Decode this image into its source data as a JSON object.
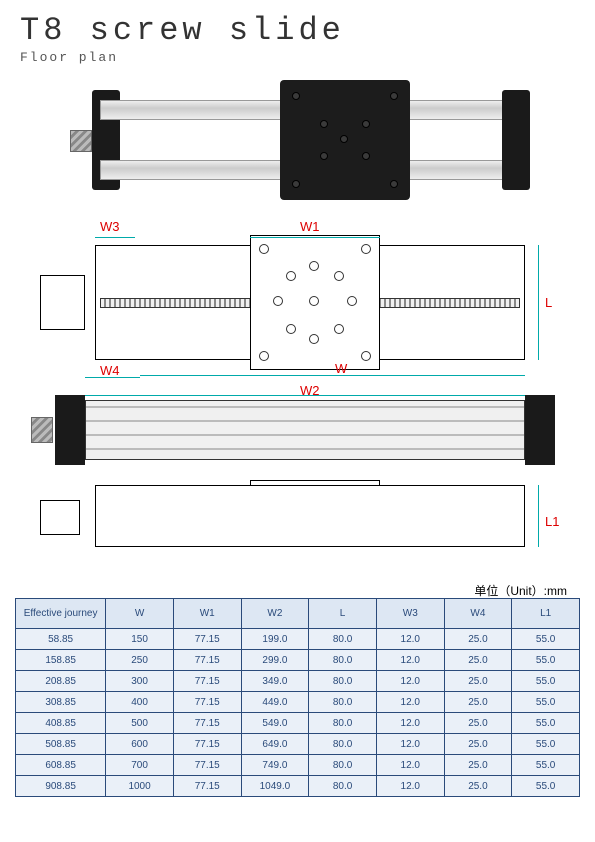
{
  "title": "T8 screw slide",
  "subtitle": "Floor plan",
  "unit_label": "单位（Unit）:mm",
  "dimensions": {
    "W": "W",
    "W1": "W1",
    "W2": "W2",
    "W3": "W3",
    "W4": "W4",
    "L": "L",
    "L1": "L1"
  },
  "dim_colors": {
    "W_family": "#cc0000",
    "L_family": "#cc0000",
    "lines": "#00aaaa"
  },
  "table": {
    "columns": [
      "Effective journey",
      "W",
      "W1",
      "W2",
      "L",
      "W3",
      "W4",
      "L1"
    ],
    "col_widths_pct": [
      16,
      12,
      12,
      12,
      12,
      12,
      12,
      12
    ],
    "header_bg": "#dde7f3",
    "cell_bg": "#eaf0f8",
    "border_color": "#2a4a7a",
    "text_color": "#2a4a7a",
    "font_size": 10,
    "rows": [
      [
        "58.85",
        "150",
        "77.15",
        "199.0",
        "80.0",
        "12.0",
        "25.0",
        "55.0"
      ],
      [
        "158.85",
        "250",
        "77.15",
        "299.0",
        "80.0",
        "12.0",
        "25.0",
        "55.0"
      ],
      [
        "208.85",
        "300",
        "77.15",
        "349.0",
        "80.0",
        "12.0",
        "25.0",
        "55.0"
      ],
      [
        "308.85",
        "400",
        "77.15",
        "449.0",
        "80.0",
        "12.0",
        "25.0",
        "55.0"
      ],
      [
        "408.85",
        "500",
        "77.15",
        "549.0",
        "80.0",
        "12.0",
        "25.0",
        "55.0"
      ],
      [
        "508.85",
        "600",
        "77.15",
        "649.0",
        "80.0",
        "12.0",
        "25.0",
        "55.0"
      ],
      [
        "608.85",
        "700",
        "77.15",
        "749.0",
        "80.0",
        "12.0",
        "25.0",
        "55.0"
      ],
      [
        "908.85",
        "1000",
        "77.15",
        "1049.0",
        "80.0",
        "12.0",
        "25.0",
        "55.0"
      ]
    ]
  },
  "colors": {
    "page_bg": "#ffffff",
    "title_text": "#333333",
    "drawing_line": "#000000",
    "endcap": "#1a1a1a",
    "aluminum": "#dddddd"
  },
  "typography": {
    "title_fontsize": 32,
    "subtitle_fontsize": 13,
    "dim_label_fontsize": 13
  }
}
